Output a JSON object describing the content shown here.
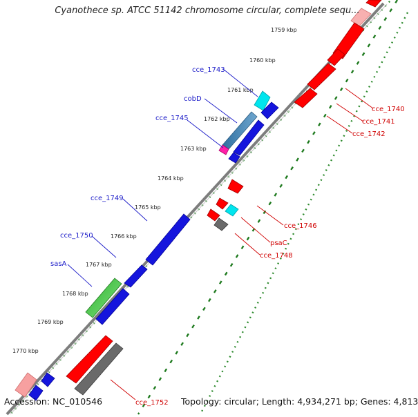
{
  "title": "Cyanothece sp. ATCC 51142 chromosome circular, complete sequ...",
  "footer": {
    "accession": "Accession: NC_010546",
    "topology": "Topology: circular; Length: 4,934,271 bp; Genes: 4,813"
  },
  "colors": {
    "forward_gene": "#1010d8",
    "reverse_gene": "#e00000",
    "backbone": "#808080",
    "fwd_label": "#1a1ac8",
    "rev_label": "#d00000",
    "dotted_track": "#2e8b2e"
  },
  "kbp_ticks": [
    "1759 kbp",
    "1760 kbp",
    "1761 kbp",
    "1762 kbp",
    "1763 kbp",
    "1764 kbp",
    "1765 kbp",
    "1766 kbp",
    "1767 kbp",
    "1768 kbp",
    "1769 kbp",
    "1770 kbp"
  ],
  "forward_labels": [
    "cce_1743",
    "cobD",
    "cce_1745",
    "cce_1749",
    "cce_1750",
    "sasA"
  ],
  "reverse_labels": [
    "cce_1740",
    "cce_1741",
    "cce_1742",
    "cce_1746",
    "psaC",
    "cce_1748",
    "cce_1752"
  ]
}
